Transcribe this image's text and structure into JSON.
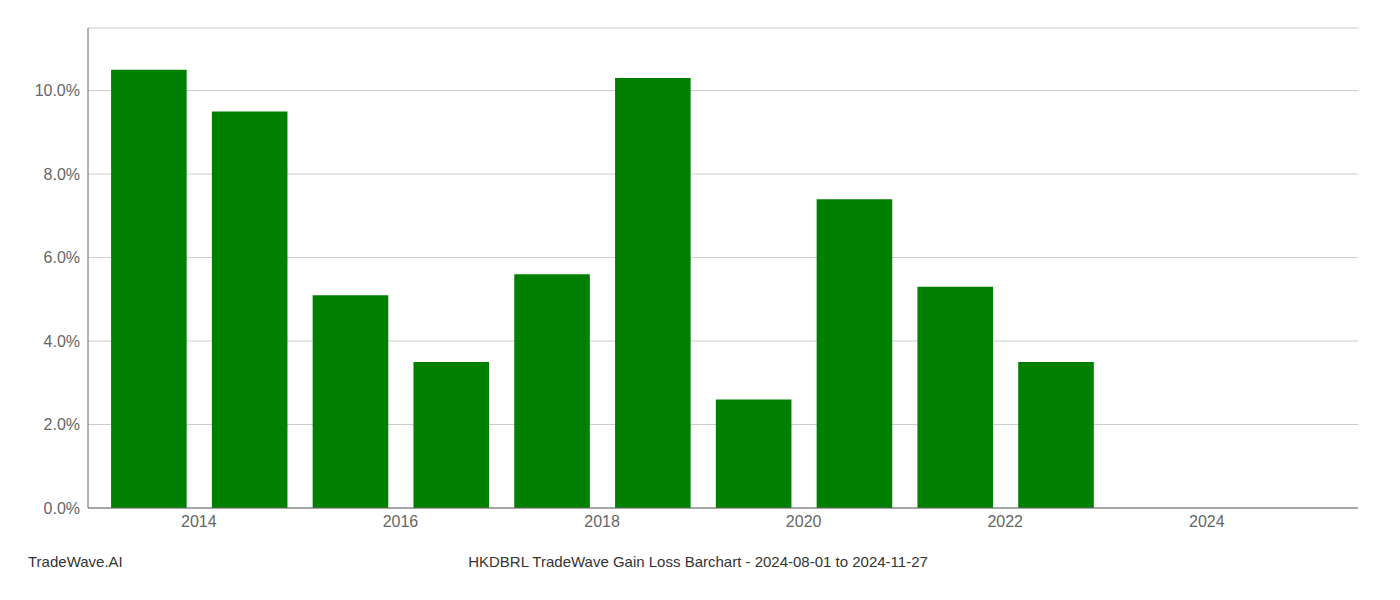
{
  "chart_data": {
    "type": "bar",
    "title": "HKDBRL TradeWave Gain Loss Barchart - 2024-08-01 to 2024-11-27",
    "annotations": [
      "TradeWave.AI"
    ],
    "x": [
      2013,
      2014,
      2015,
      2016,
      2017,
      2018,
      2019,
      2020,
      2021,
      2022,
      2023,
      2024
    ],
    "values": [
      0.105,
      0.095,
      0.051,
      0.035,
      0.056,
      0.103,
      0.026,
      0.074,
      0.053,
      0.035,
      0.0,
      0.0
    ],
    "color": "#008000",
    "grid": true,
    "xlim": [
      2012.4,
      2025.0
    ],
    "xticks": [
      {
        "value": 2013.5,
        "label": "2014"
      },
      {
        "value": 2015.5,
        "label": "2016"
      },
      {
        "value": 2017.5,
        "label": "2018"
      },
      {
        "value": 2019.5,
        "label": "2020"
      },
      {
        "value": 2021.5,
        "label": "2022"
      },
      {
        "value": 2023.5,
        "label": "2024"
      }
    ],
    "ylim": [
      0,
      0.115
    ],
    "yticks": [
      {
        "value": 0.0,
        "label": "0.0%"
      },
      {
        "value": 0.02,
        "label": "2.0%"
      },
      {
        "value": 0.04,
        "label": "4.0%"
      },
      {
        "value": 0.06,
        "label": "6.0%"
      },
      {
        "value": 0.08,
        "label": "8.0%"
      },
      {
        "value": 0.1,
        "label": "10.0%"
      }
    ]
  }
}
